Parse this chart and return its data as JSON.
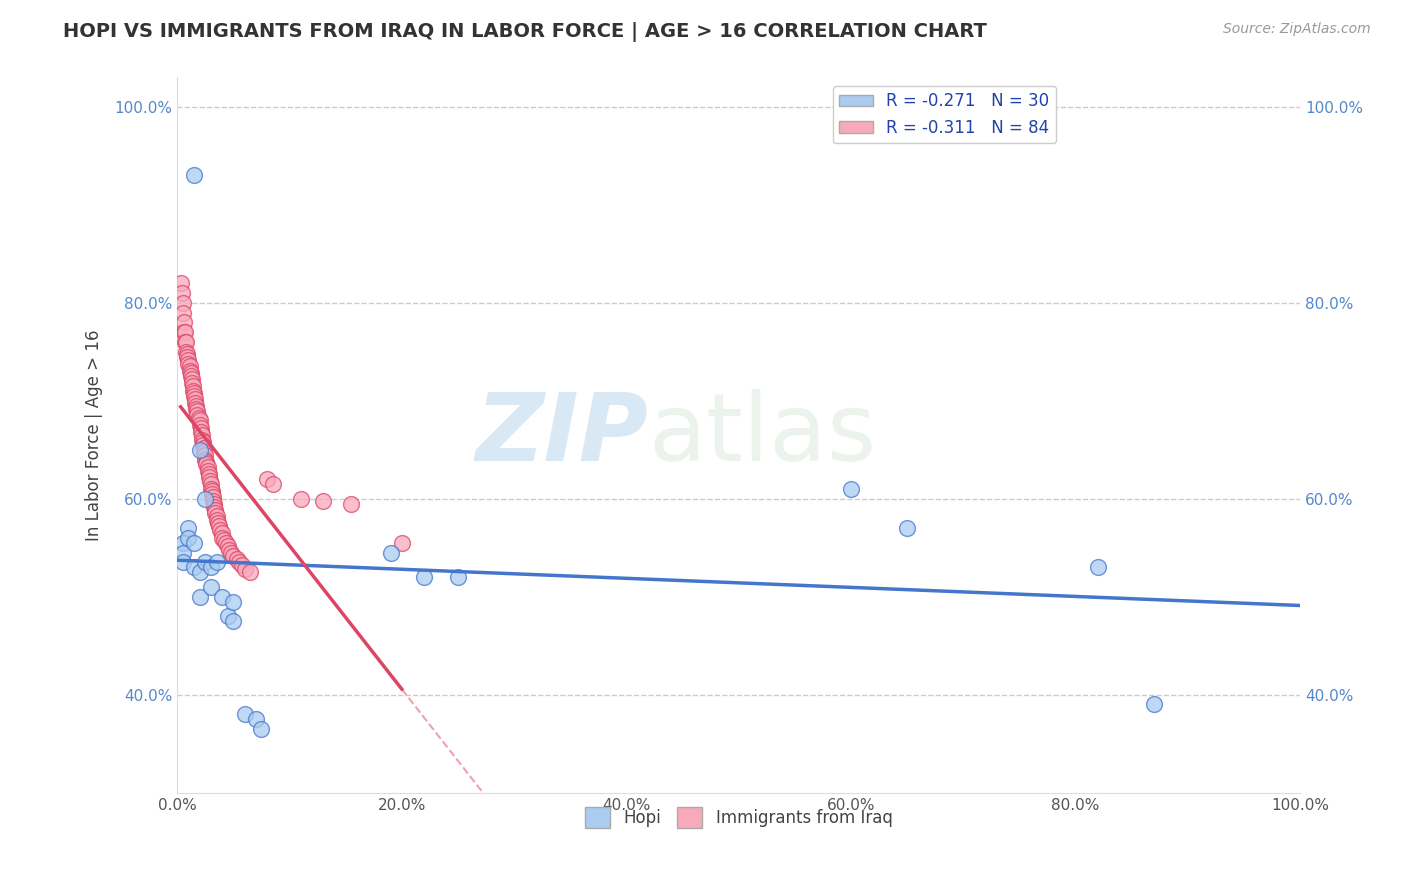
{
  "title": "HOPI VS IMMIGRANTS FROM IRAQ IN LABOR FORCE | AGE > 16 CORRELATION CHART",
  "source": "Source: ZipAtlas.com",
  "ylabel": "In Labor Force | Age > 16",
  "xlim": [
    0.0,
    1.0
  ],
  "ylim": [
    0.3,
    1.03
  ],
  "xticks": [
    0.0,
    0.2,
    0.4,
    0.6,
    0.8,
    1.0
  ],
  "yticks": [
    0.4,
    0.6,
    0.8,
    1.0
  ],
  "xtick_labels": [
    "0.0%",
    "20.0%",
    "40.0%",
    "60.0%",
    "80.0%",
    "100.0%"
  ],
  "ytick_labels": [
    "40.0%",
    "60.0%",
    "80.0%",
    "100.0%"
  ],
  "legend_labels": [
    "R = -0.271   N = 30",
    "R = -0.311   N = 84"
  ],
  "hopi_color": "#aaccf0",
  "iraq_color": "#f8aabb",
  "hopi_line_color": "#4477cc",
  "iraq_line_color": "#dd4466",
  "watermark_zip": "ZIP",
  "watermark_atlas": "atlas",
  "hopi_scatter_x": [
    0.005,
    0.005,
    0.005,
    0.01,
    0.01,
    0.015,
    0.015,
    0.02,
    0.02,
    0.025,
    0.03,
    0.03,
    0.035,
    0.04,
    0.045,
    0.05,
    0.05,
    0.06,
    0.07,
    0.075,
    0.015,
    0.02,
    0.025,
    0.19,
    0.22,
    0.25,
    0.6,
    0.65,
    0.82,
    0.87
  ],
  "hopi_scatter_y": [
    0.555,
    0.545,
    0.535,
    0.57,
    0.56,
    0.555,
    0.53,
    0.525,
    0.5,
    0.535,
    0.53,
    0.51,
    0.535,
    0.5,
    0.48,
    0.495,
    0.475,
    0.38,
    0.375,
    0.365,
    0.93,
    0.65,
    0.6,
    0.545,
    0.52,
    0.52,
    0.61,
    0.57,
    0.53,
    0.39
  ],
  "iraq_scatter_x": [
    0.003,
    0.004,
    0.005,
    0.005,
    0.006,
    0.006,
    0.007,
    0.007,
    0.008,
    0.008,
    0.009,
    0.009,
    0.01,
    0.01,
    0.011,
    0.011,
    0.012,
    0.012,
    0.013,
    0.013,
    0.014,
    0.014,
    0.015,
    0.015,
    0.016,
    0.016,
    0.017,
    0.017,
    0.018,
    0.018,
    0.019,
    0.02,
    0.02,
    0.021,
    0.021,
    0.022,
    0.022,
    0.023,
    0.023,
    0.024,
    0.024,
    0.025,
    0.025,
    0.026,
    0.026,
    0.027,
    0.027,
    0.028,
    0.028,
    0.029,
    0.03,
    0.03,
    0.031,
    0.031,
    0.032,
    0.032,
    0.033,
    0.033,
    0.034,
    0.034,
    0.035,
    0.035,
    0.036,
    0.037,
    0.038,
    0.04,
    0.04,
    0.042,
    0.043,
    0.045,
    0.046,
    0.048,
    0.05,
    0.053,
    0.055,
    0.058,
    0.06,
    0.065,
    0.08,
    0.085,
    0.11,
    0.13,
    0.155,
    0.2
  ],
  "iraq_scatter_y": [
    0.82,
    0.81,
    0.8,
    0.79,
    0.78,
    0.77,
    0.77,
    0.76,
    0.76,
    0.75,
    0.748,
    0.745,
    0.742,
    0.738,
    0.735,
    0.73,
    0.728,
    0.725,
    0.722,
    0.718,
    0.715,
    0.71,
    0.708,
    0.705,
    0.702,
    0.698,
    0.695,
    0.692,
    0.69,
    0.685,
    0.682,
    0.68,
    0.675,
    0.672,
    0.668,
    0.665,
    0.66,
    0.658,
    0.655,
    0.652,
    0.648,
    0.645,
    0.64,
    0.638,
    0.635,
    0.632,
    0.628,
    0.625,
    0.622,
    0.618,
    0.615,
    0.61,
    0.608,
    0.605,
    0.602,
    0.598,
    0.595,
    0.592,
    0.588,
    0.585,
    0.582,
    0.578,
    0.575,
    0.572,
    0.568,
    0.565,
    0.56,
    0.558,
    0.555,
    0.552,
    0.548,
    0.545,
    0.542,
    0.538,
    0.535,
    0.532,
    0.528,
    0.525,
    0.62,
    0.615,
    0.6,
    0.598,
    0.595,
    0.555
  ]
}
